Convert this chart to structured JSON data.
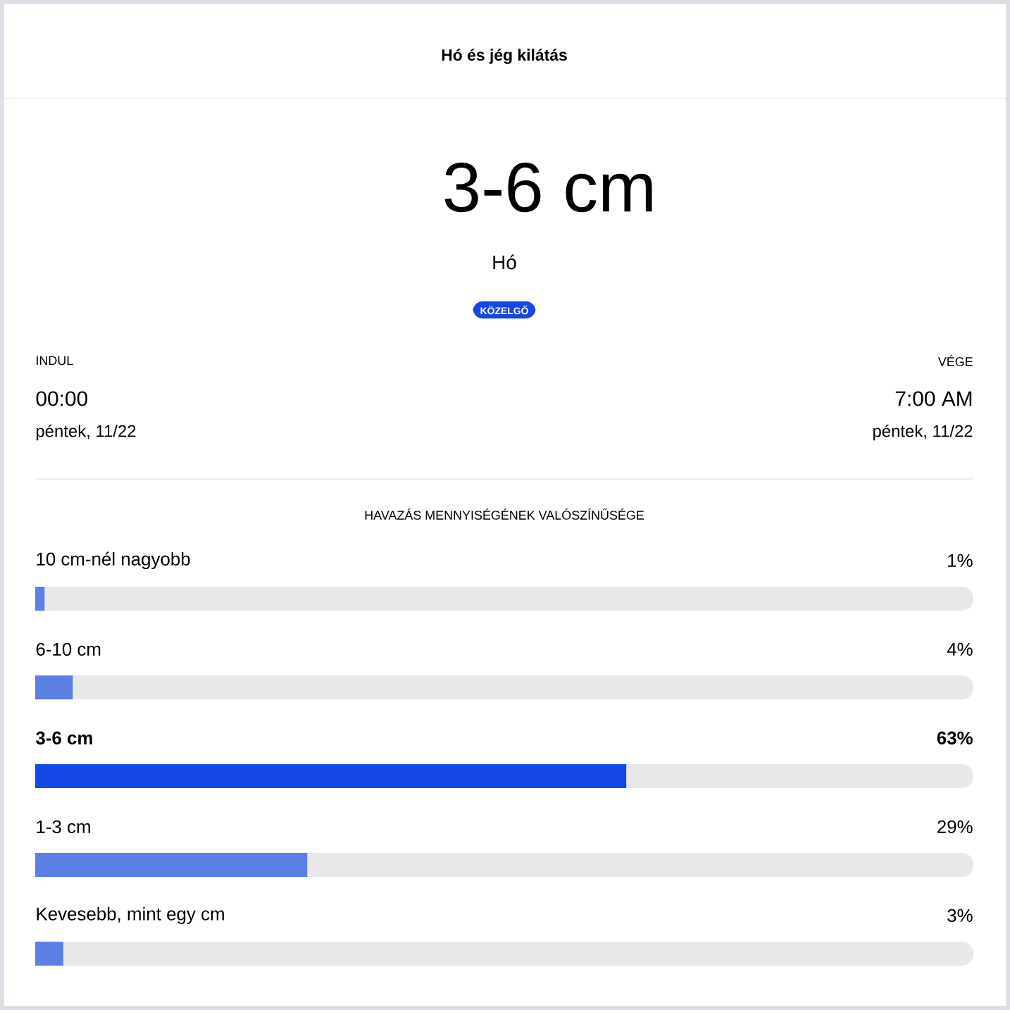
{
  "chart_data": {
    "type": "bar",
    "orientation": "horizontal",
    "title": "Hó és jég kilátás",
    "subtitle": "HAVAZÁS MENNYISÉGÉNEK VALÓSZÍNŰSÉGE",
    "categories": [
      "10 cm-nél nagyobb",
      "6-10 cm",
      "3-6 cm",
      "1-3 cm",
      "Kevesebb, mint egy cm"
    ],
    "values": [
      1,
      4,
      63,
      29,
      3
    ],
    "value_labels": [
      "1%",
      "4%",
      "63%",
      "29%",
      "3%"
    ],
    "colors": [
      "#5b7fe3",
      "#5b7fe3",
      "#1448e5",
      "#5b7fe3",
      "#5b7fe3"
    ],
    "xlim": [
      0,
      100
    ],
    "tick_labels": false,
    "annotations": [
      "3-6 cm",
      "Hó",
      "KÖZELGŐ",
      "INDUL",
      "00:00",
      "péntek, 11/22",
      "VÉGE",
      "7:00 AM",
      "péntek, 11/22"
    ]
  }
}
